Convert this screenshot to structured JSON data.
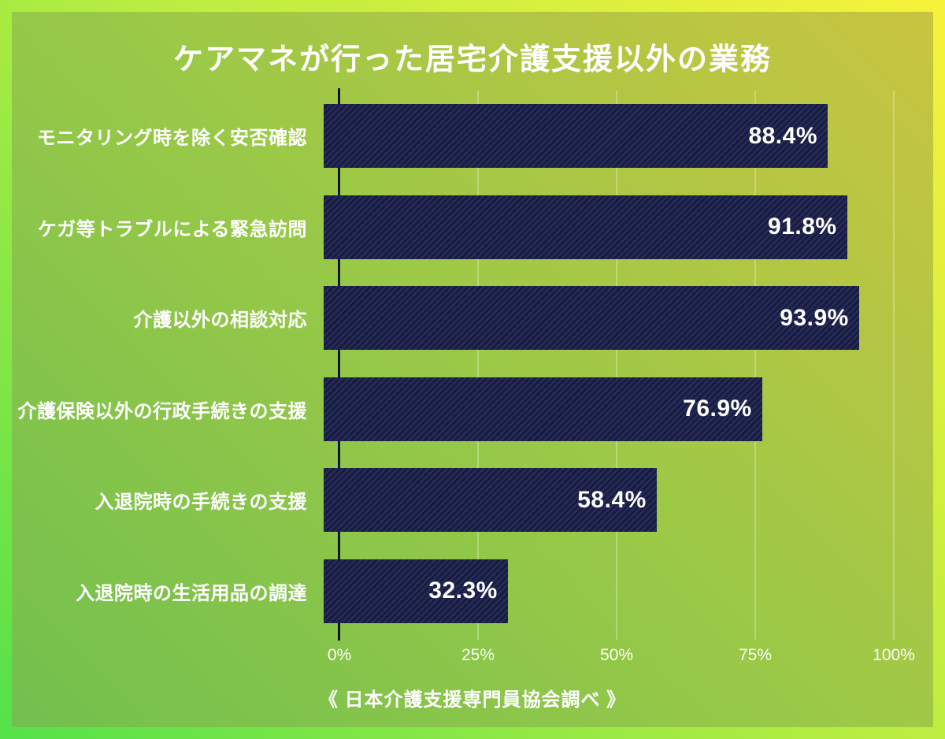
{
  "page": {
    "title": "ケアマネが行った居宅介護支援以外の業務",
    "source_note": "《 日本介護支援専門員協会調べ 》"
  },
  "colors": {
    "frame_gradient": [
      "#55e14a",
      "#b9ed41",
      "#f7f23a"
    ],
    "panel_gradient": [
      "#72c04e",
      "#9cc947",
      "#c9c440"
    ],
    "bar_base": "#1f2450",
    "bar_stripe_dark": "#171c40",
    "bar_stripe_light": "#262b58",
    "axis_line": "#12152e",
    "gridline": "rgba(255,255,255,0.55)",
    "text": "#ffffff"
  },
  "chart_data": {
    "type": "bar",
    "orientation": "horizontal",
    "title": "ケアマネが行った居宅介護支援以外の業務",
    "source": "《 日本介護支援専門員協会調べ 》",
    "categories": [
      "モニタリング時を除く安否確認",
      "ケガ等トラブルによる緊急訪問",
      "介護以外の相談対応",
      "介護保険以外の行政手続きの支援",
      "入退院時の手続きの支援",
      "入退院時の生活用品の調達"
    ],
    "values": [
      88.4,
      91.8,
      93.9,
      76.9,
      58.4,
      32.3
    ],
    "value_labels": [
      "88.4%",
      "91.8%",
      "93.9%",
      "76.9%",
      "58.4%",
      "32.3%"
    ],
    "x_ticks": [
      "0%",
      "25%",
      "50%",
      "75%",
      "100%"
    ],
    "x_tick_values": [
      0,
      25,
      50,
      75,
      100
    ],
    "xlim": [
      0,
      100
    ],
    "grid": true,
    "legend": false,
    "value_label_position": "inside-right"
  }
}
